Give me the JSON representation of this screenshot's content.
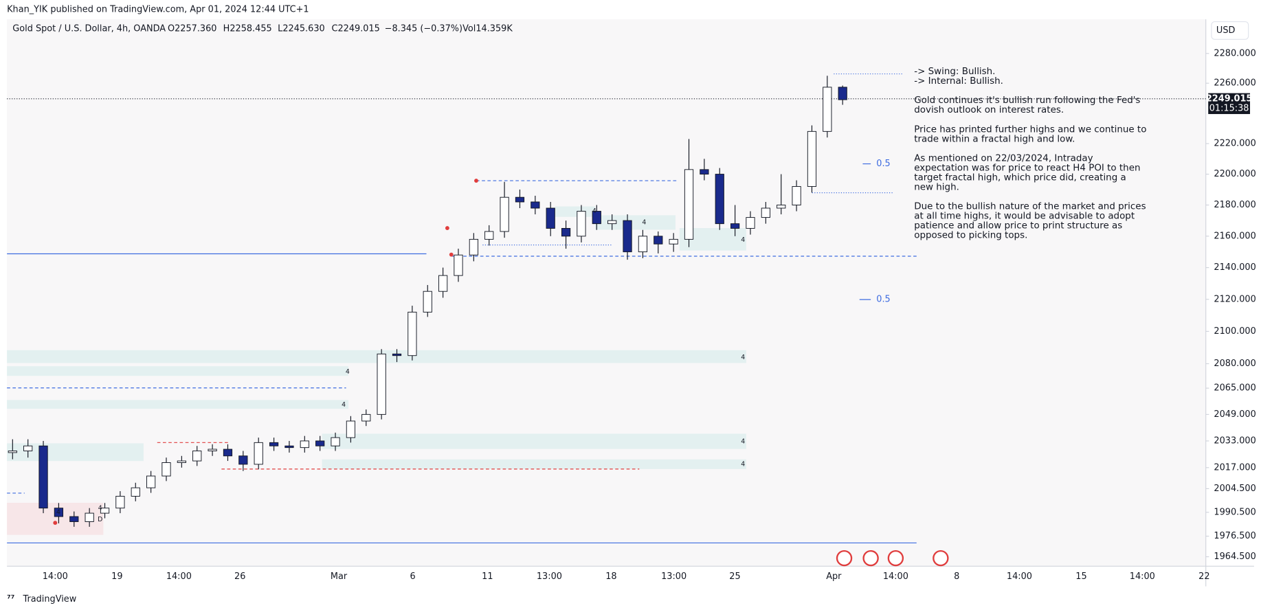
{
  "header": {
    "publisher": "Khan_YIK published on TradingView.com, Apr 01, 2024 12:44 UTC+1"
  },
  "symbol": {
    "name": "Gold Spot / U.S. Dollar, 4h, OANDA",
    "open": "O2257.360",
    "high": "H2258.455",
    "low": "L2245.630",
    "close": "C2249.015",
    "change": "−8.345 (−0.37%)",
    "volume": "Vol14.359K"
  },
  "currency": "USD",
  "price_tag": {
    "price": "2249.015",
    "countdown": "01:15:38"
  },
  "footer": "TradingView",
  "chart_data": {
    "type": "candlestick",
    "log_scale": true,
    "up_color": "#ffffff",
    "down_color": "#1a2a8c",
    "edge_color": "#131722",
    "ylim": [
      1959,
      2301
    ],
    "yticks": [
      {
        "value": 2280,
        "label": "2280.000"
      },
      {
        "value": 2260,
        "label": "2260.000"
      },
      {
        "value": 2220,
        "label": "2220.000"
      },
      {
        "value": 2200,
        "label": "2200.000"
      },
      {
        "value": 2180,
        "label": "2180.000"
      },
      {
        "value": 2160,
        "label": "2160.000"
      },
      {
        "value": 2140,
        "label": "2140.000"
      },
      {
        "value": 2120,
        "label": "2120.000"
      },
      {
        "value": 2100,
        "label": "2100.000"
      },
      {
        "value": 2080,
        "label": "2080.000"
      },
      {
        "value": 2065,
        "label": "2065.000"
      },
      {
        "value": 2049,
        "label": "2049.000"
      },
      {
        "value": 2033,
        "label": "2033.000"
      },
      {
        "value": 2017,
        "label": "2017.000"
      },
      {
        "value": 2004.5,
        "label": "2004.500"
      },
      {
        "value": 1990.5,
        "label": "1990.500"
      },
      {
        "value": 1976.5,
        "label": "1976.500"
      },
      {
        "value": 1964.5,
        "label": "1964.500"
      }
    ],
    "x_axis_labels": [
      "14:00",
      "19",
      "14:00",
      "26",
      "Mar",
      "6",
      "11",
      "13:00",
      "18",
      "13:00",
      "25",
      "Apr",
      "14:00",
      "8",
      "14:00",
      "15",
      "14:00",
      "22"
    ],
    "open": [
      2026,
      2027,
      2030,
      1993,
      1988,
      1985,
      1990,
      1993,
      2000,
      2005,
      2012,
      2020,
      2021,
      2027,
      2028,
      2024,
      2019,
      2032,
      2030,
      2029,
      2033,
      2030,
      2035,
      2045,
      2049,
      2086,
      2085,
      2112,
      2125,
      2135,
      2148,
      2158,
      2163,
      2185,
      2182,
      2178,
      2165,
      2160,
      2176,
      2168,
      2170,
      2150,
      2160,
      2155,
      2158,
      2203,
      2200,
      2168,
      2165,
      2172,
      2178,
      2180,
      2192,
      2228,
      2257.36
    ],
    "high": [
      2034,
      2034,
      2033,
      1996,
      1991,
      1993,
      1996,
      2003,
      2008,
      2015,
      2023,
      2024,
      2030,
      2031,
      2031,
      2027,
      2035,
      2035,
      2033,
      2036,
      2036,
      2038,
      2048,
      2052,
      2089,
      2089,
      2116,
      2129,
      2140,
      2152,
      2162,
      2167,
      2195,
      2190,
      2186,
      2182,
      2170,
      2180,
      2180,
      2174,
      2174,
      2164,
      2163,
      2162,
      2223,
      2210,
      2204,
      2180,
      2176,
      2182,
      2200,
      2196,
      2232,
      2265,
      2258.455
    ],
    "low": [
      2022,
      2023,
      1990,
      1984,
      1982,
      1982,
      1987,
      1990,
      1997,
      2002,
      2009,
      2017,
      2018,
      2024,
      2021,
      2015,
      2016,
      2027,
      2026,
      2026,
      2027,
      2027,
      2032,
      2042,
      2046,
      2081,
      2082,
      2109,
      2121,
      2131,
      2144,
      2154,
      2159,
      2178,
      2174,
      2160,
      2152,
      2156,
      2164,
      2164,
      2145,
      2146,
      2149,
      2150,
      2153,
      2196,
      2164,
      2160,
      2161,
      2168,
      2174,
      2176,
      2188,
      2224,
      2245.63
    ],
    "close": [
      2027,
      2030,
      1993,
      1988,
      1985,
      1990,
      1993,
      2000,
      2005,
      2012,
      2020,
      2021,
      2027,
      2028,
      2024,
      2019,
      2032,
      2030,
      2029,
      2033,
      2030,
      2035,
      2045,
      2049,
      2086,
      2085,
      2112,
      2125,
      2135,
      2148,
      2158,
      2163,
      2185,
      2182,
      2178,
      2165,
      2160,
      2176,
      2168,
      2170,
      2150,
      2160,
      2155,
      2158,
      2203,
      2200,
      2168,
      2165,
      2172,
      2178,
      2180,
      2192,
      2228,
      2257.36,
      2249.015
    ],
    "annotations": {
      "fib_labels": [
        "0.5",
        "0.5"
      ],
      "zone_labels": [
        "4",
        "4",
        "4",
        "4",
        "4",
        "4",
        "4",
        "4",
        "4",
        "4"
      ],
      "timeframe_label": "D",
      "notes": [
        [
          "-> Swing:  Bullish.",
          "-> Internal:  Bullish."
        ],
        [
          "Gold continues it's bullish run following the Fed's",
          "dovish outlook on interest rates."
        ],
        [
          "Price has printed further highs and we continue to",
          "trade within a fractal high and low."
        ],
        [
          "As mentioned on 22/03/2024, Intraday",
          "expectation was for price to react H4 POI to then",
          "target fractal high, which price did, creating a",
          "new high."
        ],
        [
          "Due to the bullish nature of the market and prices",
          "at all time highs, it would be advisable to adopt",
          "patience and allow price to print structure as",
          "opposed to picking tops."
        ]
      ]
    }
  }
}
